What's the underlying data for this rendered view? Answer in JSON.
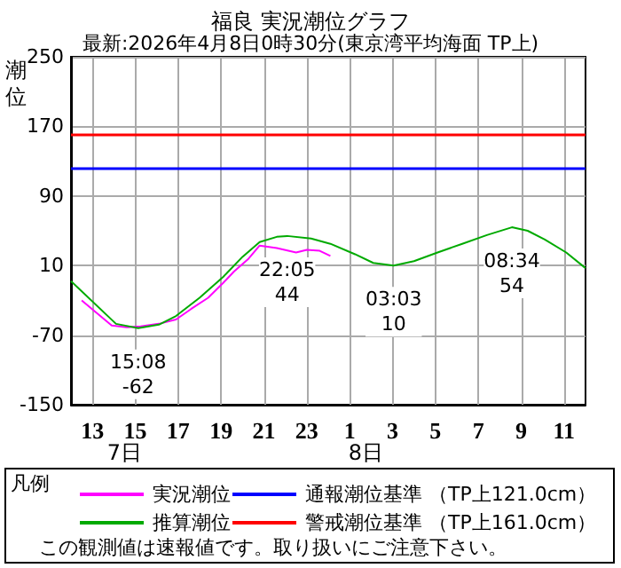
{
  "chart_data": {
    "type": "line",
    "title": "福良 実況潮位グラフ",
    "subtitle": "最新:2026年4月8日0時30分(東京湾平均海面 TP上)",
    "ylabel": "潮位",
    "legend_title": "凡例",
    "legend": "bottom",
    "grid": true,
    "marker": "none",
    "line_style": "solid",
    "xlim": [
      "2026-04-07T12:00",
      "2026-04-08T12:00"
    ],
    "xticks": [
      {
        "value": "2026-04-07T13:00",
        "label": "13"
      },
      {
        "value": "2026-04-07T15:00",
        "label": "15"
      },
      {
        "value": "2026-04-07T17:00",
        "label": "17"
      },
      {
        "value": "2026-04-07T19:00",
        "label": "19"
      },
      {
        "value": "2026-04-07T21:00",
        "label": "21"
      },
      {
        "value": "2026-04-07T23:00",
        "label": "23"
      },
      {
        "value": "2026-04-08T01:00",
        "label": "1"
      },
      {
        "value": "2026-04-08T03:00",
        "label": "3"
      },
      {
        "value": "2026-04-08T05:00",
        "label": "5"
      },
      {
        "value": "2026-04-08T07:00",
        "label": "7"
      },
      {
        "value": "2026-04-08T09:00",
        "label": "9"
      },
      {
        "value": "2026-04-08T11:00",
        "label": "11"
      }
    ],
    "x2lim": [
      "2026-04-07T12:00",
      "2026-04-08T12:00"
    ],
    "x2ticks": [
      {
        "value": "2026-04-07T14:30",
        "label": "7日"
      },
      {
        "value": "2026-04-08T01:45",
        "label": "8日"
      }
    ],
    "ylim": [
      -150,
      250
    ],
    "yticks": [
      250,
      170,
      90,
      10,
      -70,
      -150
    ],
    "series": [
      {
        "name": "実況潮位",
        "color": "#ff00ff",
        "x": [
          "2026-04-07T12:30",
          "2026-04-07T13:54",
          "2026-04-07T14:36",
          "2026-04-07T15:15",
          "2026-04-07T16:06",
          "2026-04-07T16:54",
          "2026-04-07T17:36",
          "2026-04-07T18:24",
          "2026-04-07T19:06",
          "2026-04-07T19:36",
          "2026-04-07T20:15",
          "2026-04-07T20:48",
          "2026-04-07T21:36",
          "2026-04-07T22:30",
          "2026-04-07T23:00",
          "2026-04-07T23:36",
          "2026-04-08T00:06"
        ],
        "values": [
          -30,
          -59,
          -61,
          -60,
          -57,
          -52,
          -40,
          -27,
          -10,
          3,
          17,
          33,
          30,
          25,
          28,
          27,
          21
        ]
      },
      {
        "name": "推算潮位",
        "color": "#00aa00",
        "x": [
          "2026-04-07T12:00",
          "2026-04-07T14:06",
          "2026-04-07T15:08",
          "2026-04-07T16:06",
          "2026-04-07T16:54",
          "2026-04-07T18:00",
          "2026-04-07T19:06",
          "2026-04-07T20:00",
          "2026-04-07T20:48",
          "2026-04-07T21:36",
          "2026-04-07T22:05",
          "2026-04-07T23:12",
          "2026-04-08T00:06",
          "2026-04-08T01:15",
          "2026-04-08T02:06",
          "2026-04-08T03:03",
          "2026-04-08T04:00",
          "2026-04-08T05:06",
          "2026-04-08T06:15",
          "2026-04-08T07:24",
          "2026-04-08T08:34",
          "2026-04-08T09:18",
          "2026-04-08T10:06",
          "2026-04-08T11:06",
          "2026-04-08T12:00"
        ],
        "values": [
          -8,
          -57,
          -62,
          -58,
          -48,
          -27,
          -3,
          20,
          37,
          43,
          44,
          41,
          35,
          23,
          13,
          10,
          15,
          25,
          35,
          45,
          54,
          50,
          40,
          25,
          7
        ]
      }
    ],
    "ref_lines": [
      {
        "axis": "y",
        "value": 121,
        "label": "通報潮位基準 （TP上121.0cm）",
        "color": "#0000ff"
      },
      {
        "axis": "y",
        "value": 161,
        "label": "警戒潮位基準 （TP上161.0cm）",
        "color": "#ff0000"
      }
    ],
    "annotations": [
      "この観測値は速報値です。取り扱いにご注意下さい。",
      {
        "text": "15:08\n-62",
        "x": "2026-04-07T15:08",
        "y": -62
      },
      {
        "text": "22:05\n44",
        "x": "2026-04-07T22:05",
        "y": 44
      },
      {
        "text": "03:03\n10",
        "x": "2026-04-08T03:03",
        "y": 10
      },
      {
        "text": "08:34\n54",
        "x": "2026-04-08T08:34",
        "y": 54
      }
    ]
  }
}
